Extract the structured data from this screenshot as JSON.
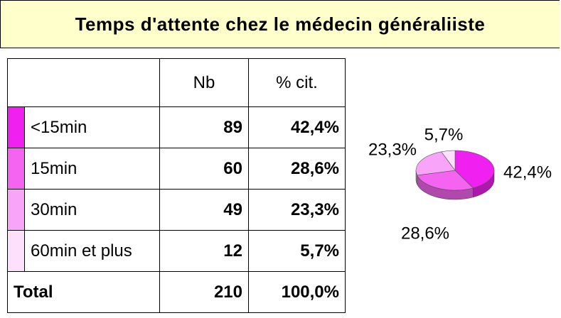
{
  "title": "Temps d'attente chez le médecin généraliiste",
  "table": {
    "header": [
      "Nb",
      "% cit."
    ],
    "rows": [
      [
        "<15min",
        "89",
        "42,4%"
      ],
      [
        "15min",
        "60",
        "28,6%"
      ],
      [
        "30min",
        "49",
        "23,3%"
      ],
      [
        "60min et plus",
        "12",
        "5,7%"
      ]
    ],
    "total": [
      "Total",
      "210",
      "100,0%"
    ]
  },
  "chart_data": {
    "type": "pie",
    "values": [
      42.4,
      28.6,
      23.3,
      5.7
    ],
    "value_labels": [
      "42,4%",
      "28,6%",
      "23,3%",
      "5,7%"
    ],
    "colors": [
      "#f020f0",
      "#f464f0",
      "#f8a4f8",
      "#fde0fc"
    ]
  }
}
